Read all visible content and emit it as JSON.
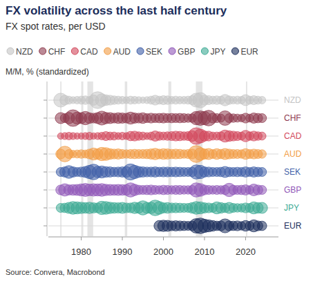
{
  "chart_data": {
    "type": "bubble",
    "title": "FX volatility across the last half century",
    "subtitle": "FX spot rates, per USD",
    "y_label": "M/M, % (standardized)",
    "source": "Source: Convera, Macrobond",
    "legend": "top",
    "grid": true,
    "xlim": [
      1972,
      2028
    ],
    "xticks": [
      1980,
      1990,
      2000,
      2010,
      2020
    ],
    "shaded_periods": [
      [
        1974.9,
        1975.2
      ],
      [
        1980.0,
        1980.5
      ],
      [
        1981.5,
        1982.9
      ],
      [
        1990.6,
        1991.2
      ],
      [
        2001.2,
        2001.9
      ],
      [
        2007.9,
        2009.5
      ],
      [
        2020.1,
        2020.4
      ]
    ],
    "series": [
      {
        "name": "NZD",
        "color": "#c4c4c4",
        "x": [
          1975,
          1976,
          1977,
          1978,
          1979,
          1980,
          1981,
          1982,
          1983,
          1984,
          1985,
          1986,
          1987,
          1988,
          1989,
          1990,
          1991,
          1992,
          1993,
          1994,
          1995,
          1996,
          1997,
          1998,
          1999,
          2000,
          2001,
          2002,
          2003,
          2004,
          2005,
          2006,
          2007,
          2008,
          2009,
          2010,
          2011,
          2012,
          2013,
          2014,
          2015,
          2016,
          2017,
          2018,
          2019,
          2020,
          2021,
          2022,
          2023,
          2024
        ],
        "size": [
          2.4,
          1.2,
          0.8,
          0.6,
          0.7,
          0.8,
          0.9,
          0.7,
          1.3,
          3.5,
          2.0,
          1.4,
          1.2,
          0.9,
          0.8,
          0.7,
          0.6,
          0.8,
          0.7,
          0.6,
          0.5,
          0.6,
          0.8,
          1.2,
          0.8,
          1.0,
          0.9,
          0.7,
          0.8,
          0.7,
          0.7,
          0.8,
          1.0,
          2.4,
          2.8,
          1.2,
          1.0,
          0.8,
          0.9,
          0.8,
          1.6,
          0.9,
          0.7,
          0.8,
          0.7,
          1.5,
          0.8,
          1.0,
          0.8,
          0.7
        ]
      },
      {
        "name": "CHF",
        "color": "#8e3b4f",
        "x": [
          1975,
          1976,
          1977,
          1978,
          1979,
          1980,
          1981,
          1982,
          1983,
          1984,
          1985,
          1986,
          1987,
          1988,
          1989,
          1990,
          1991,
          1992,
          1993,
          1994,
          1995,
          1996,
          1997,
          1998,
          1999,
          2000,
          2001,
          2002,
          2003,
          2004,
          2005,
          2006,
          2007,
          2008,
          2009,
          2010,
          2011,
          2012,
          2013,
          2014,
          2015,
          2016,
          2017,
          2018,
          2019,
          2020,
          2021,
          2022,
          2023,
          2024
        ],
        "size": [
          1.5,
          1.0,
          1.6,
          3.4,
          1.8,
          1.5,
          2.2,
          1.4,
          1.2,
          1.5,
          2.4,
          1.6,
          1.5,
          1.2,
          1.4,
          1.3,
          1.2,
          1.8,
          1.3,
          1.2,
          1.4,
          1.0,
          1.2,
          1.0,
          1.1,
          1.2,
          1.0,
          1.1,
          1.0,
          1.1,
          1.0,
          0.9,
          0.9,
          2.2,
          2.6,
          2.2,
          3.0,
          1.2,
          1.0,
          0.8,
          2.6,
          1.0,
          0.9,
          0.8,
          0.7,
          1.2,
          0.8,
          1.3,
          1.1,
          1.0
        ]
      },
      {
        "name": "CAD",
        "color": "#d2475b",
        "x": [
          1975,
          1976,
          1977,
          1978,
          1979,
          1980,
          1981,
          1982,
          1983,
          1984,
          1985,
          1986,
          1987,
          1988,
          1989,
          1990,
          1991,
          1992,
          1993,
          1994,
          1995,
          1996,
          1997,
          1998,
          1999,
          2000,
          2001,
          2002,
          2003,
          2004,
          2005,
          2006,
          2007,
          2008,
          2009,
          2010,
          2011,
          2012,
          2013,
          2014,
          2015,
          2016,
          2017,
          2018,
          2019,
          2020,
          2021,
          2022,
          2023,
          2024
        ],
        "size": [
          0.5,
          0.6,
          0.7,
          0.6,
          0.5,
          0.5,
          0.6,
          0.7,
          0.5,
          0.6,
          0.7,
          1.0,
          0.8,
          0.8,
          0.6,
          0.7,
          0.6,
          1.1,
          1.2,
          0.9,
          0.8,
          0.6,
          0.8,
          1.3,
          0.9,
          0.8,
          0.9,
          1.0,
          1.2,
          1.1,
          0.9,
          1.0,
          1.4,
          3.4,
          2.4,
          1.3,
          1.2,
          0.8,
          0.8,
          0.9,
          1.8,
          1.4,
          1.2,
          1.0,
          0.8,
          1.6,
          0.9,
          1.2,
          0.9,
          0.8
        ]
      },
      {
        "name": "AUD",
        "color": "#f29d45",
        "x": [
          1975,
          1976,
          1977,
          1978,
          1979,
          1980,
          1981,
          1982,
          1983,
          1984,
          1985,
          1986,
          1987,
          1988,
          1989,
          1990,
          1991,
          1992,
          1993,
          1994,
          1995,
          1996,
          1997,
          1998,
          1999,
          2000,
          2001,
          2002,
          2003,
          2004,
          2005,
          2006,
          2007,
          2008,
          2009,
          2010,
          2011,
          2012,
          2013,
          2014,
          2015,
          2016,
          2017,
          2018,
          2019,
          2020,
          2021,
          2022,
          2023,
          2024
        ],
        "size": [
          1.2,
          3.0,
          1.0,
          0.7,
          0.8,
          0.9,
          0.8,
          1.2,
          1.8,
          1.4,
          2.2,
          2.0,
          1.4,
          1.2,
          1.3,
          1.0,
          0.9,
          1.0,
          1.1,
          1.0,
          1.0,
          1.1,
          1.3,
          1.6,
          1.2,
          1.4,
          1.3,
          1.1,
          1.2,
          1.1,
          0.9,
          1.0,
          1.2,
          3.5,
          2.0,
          1.3,
          1.5,
          1.0,
          1.4,
          1.1,
          1.5,
          1.2,
          1.0,
          1.0,
          0.9,
          1.4,
          1.0,
          1.2,
          1.0,
          0.9
        ]
      },
      {
        "name": "SEK",
        "color": "#3f5fa8",
        "x": [
          1975,
          1976,
          1977,
          1978,
          1979,
          1980,
          1981,
          1982,
          1983,
          1984,
          1985,
          1986,
          1987,
          1988,
          1989,
          1990,
          1991,
          1992,
          1993,
          1994,
          1995,
          1996,
          1997,
          1998,
          1999,
          2000,
          2001,
          2002,
          2003,
          2004,
          2005,
          2006,
          2007,
          2008,
          2009,
          2010,
          2011,
          2012,
          2013,
          2014,
          2015,
          2016,
          2017,
          2018,
          2019,
          2020,
          2021,
          2022,
          2023,
          2024
        ],
        "size": [
          1.0,
          1.3,
          2.0,
          1.3,
          1.0,
          1.2,
          1.5,
          2.2,
          3.0,
          1.6,
          1.8,
          1.4,
          1.3,
          1.1,
          1.2,
          1.3,
          1.4,
          3.2,
          2.2,
          1.5,
          1.3,
          1.2,
          1.2,
          1.3,
          1.1,
          1.2,
          1.2,
          1.1,
          1.2,
          1.1,
          1.0,
          1.0,
          1.1,
          2.5,
          2.2,
          1.3,
          1.2,
          1.0,
          1.0,
          1.1,
          1.5,
          1.1,
          1.0,
          1.1,
          1.0,
          1.3,
          1.0,
          1.3,
          1.1,
          1.0
        ]
      },
      {
        "name": "GBP",
        "color": "#8f57b8",
        "x": [
          1975,
          1976,
          1977,
          1978,
          1979,
          1980,
          1981,
          1982,
          1983,
          1984,
          1985,
          1986,
          1987,
          1988,
          1989,
          1990,
          1991,
          1992,
          1993,
          1994,
          1995,
          1996,
          1997,
          1998,
          1999,
          2000,
          2001,
          2002,
          2003,
          2004,
          2005,
          2006,
          2007,
          2008,
          2009,
          2010,
          2011,
          2012,
          2013,
          2014,
          2015,
          2016,
          2017,
          2018,
          2019,
          2020,
          2021,
          2022,
          2023,
          2024
        ],
        "size": [
          1.2,
          1.9,
          1.3,
          1.4,
          1.5,
          1.8,
          2.1,
          1.7,
          1.9,
          1.8,
          2.0,
          1.6,
          1.5,
          1.4,
          1.5,
          1.4,
          1.4,
          2.5,
          1.6,
          1.1,
          1.0,
          1.1,
          1.2,
          1.0,
          0.9,
          1.1,
          1.0,
          0.9,
          1.0,
          1.0,
          0.9,
          0.9,
          1.0,
          2.5,
          2.0,
          1.2,
          1.0,
          0.9,
          1.0,
          0.9,
          1.1,
          2.2,
          1.1,
          1.0,
          1.1,
          1.3,
          0.9,
          1.7,
          1.2,
          1.0
        ]
      },
      {
        "name": "JPY",
        "color": "#3caa94",
        "x": [
          1975,
          1976,
          1977,
          1978,
          1979,
          1980,
          1981,
          1982,
          1983,
          1984,
          1985,
          1986,
          1987,
          1988,
          1989,
          1990,
          1991,
          1992,
          1993,
          1994,
          1995,
          1996,
          1997,
          1998,
          1999,
          2000,
          2001,
          2002,
          2003,
          2004,
          2005,
          2006,
          2007,
          2008,
          2009,
          2010,
          2011,
          2012,
          2013,
          2014,
          2015,
          2016,
          2017,
          2018,
          2019,
          2020,
          2021,
          2022,
          2023,
          2024
        ],
        "size": [
          1.0,
          1.1,
          1.5,
          2.0,
          1.8,
          1.6,
          1.4,
          1.6,
          1.3,
          1.2,
          2.2,
          2.0,
          1.6,
          1.4,
          1.3,
          1.5,
          1.2,
          1.2,
          1.6,
          1.4,
          2.5,
          1.5,
          1.6,
          3.0,
          2.0,
          1.3,
          1.4,
          1.2,
          1.2,
          1.1,
          1.0,
          1.0,
          1.4,
          2.0,
          1.8,
          1.3,
          1.2,
          1.0,
          1.8,
          1.4,
          1.1,
          1.5,
          1.0,
          0.9,
          0.9,
          1.2,
          1.0,
          1.8,
          1.4,
          1.5
        ]
      },
      {
        "name": "EUR",
        "color": "#1b2d5b",
        "x": [
          1999,
          2000,
          2001,
          2002,
          2003,
          2004,
          2005,
          2006,
          2007,
          2008,
          2009,
          2010,
          2011,
          2012,
          2013,
          2014,
          2015,
          2016,
          2017,
          2018,
          2019,
          2020,
          2021,
          2022,
          2023,
          2024
        ],
        "size": [
          1.4,
          1.6,
          1.5,
          1.2,
          1.3,
          1.2,
          1.1,
          1.0,
          1.1,
          2.6,
          3.0,
          2.2,
          1.8,
          1.4,
          1.1,
          1.2,
          2.4,
          1.2,
          1.1,
          1.2,
          0.9,
          1.4,
          1.0,
          1.8,
          1.2,
          1.1
        ]
      }
    ]
  }
}
